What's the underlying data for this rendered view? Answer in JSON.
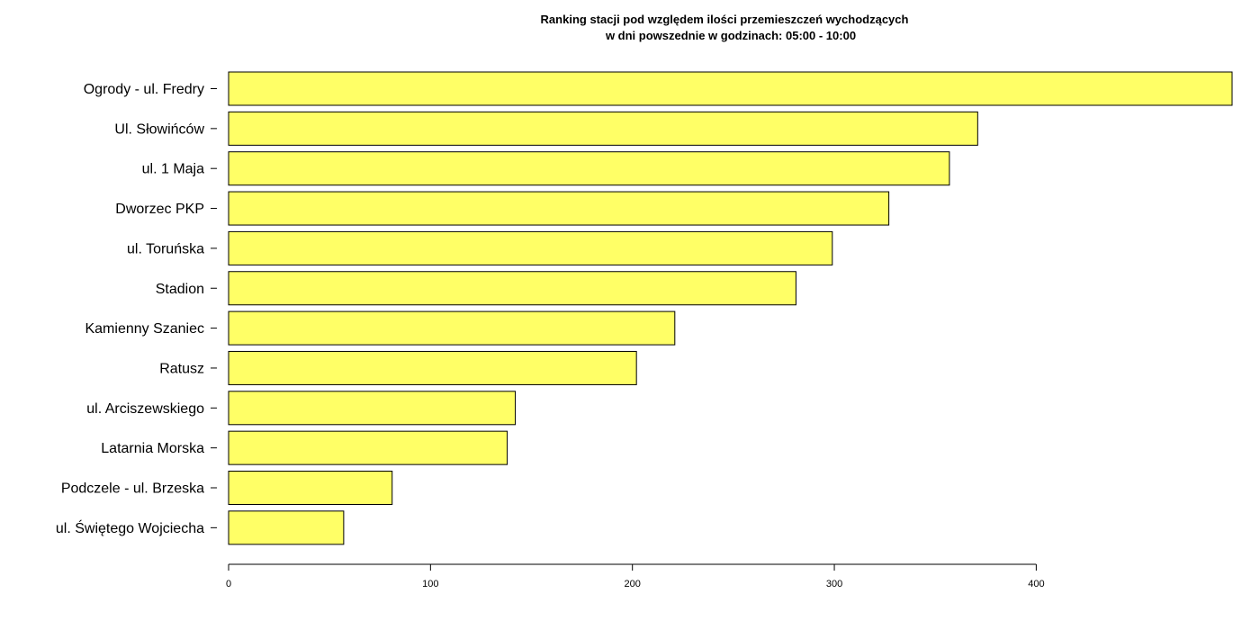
{
  "chart_data": {
    "type": "bar",
    "orientation": "horizontal",
    "title_line1": "Ranking stacji pod względem ilości przemieszczeń wychodzących",
    "title_line2": "w dni powszednie w godzinach: 05:00 - 10:00",
    "xlabel": "",
    "ylabel": "",
    "categories": [
      "Ogrody - ul. Fredry",
      "Ul. Słowińców",
      "ul. 1 Maja",
      "Dworzec PKP",
      "ul. Toruńska",
      "Stadion",
      "Kamienny Szaniec",
      "Ratusz",
      "ul. Arciszewskiego",
      "Latarnia Morska",
      "Podczele - ul. Brzeska",
      "ul. Świętego Wojciecha"
    ],
    "values": [
      497,
      371,
      357,
      327,
      299,
      281,
      221,
      202,
      142,
      138,
      81,
      57
    ],
    "xlim": [
      0,
      497
    ],
    "x_ticks": [
      0,
      100,
      200,
      300,
      400
    ],
    "bar_color": "#ffff66",
    "bar_border": "#000000",
    "grid": false,
    "legend": "none"
  }
}
